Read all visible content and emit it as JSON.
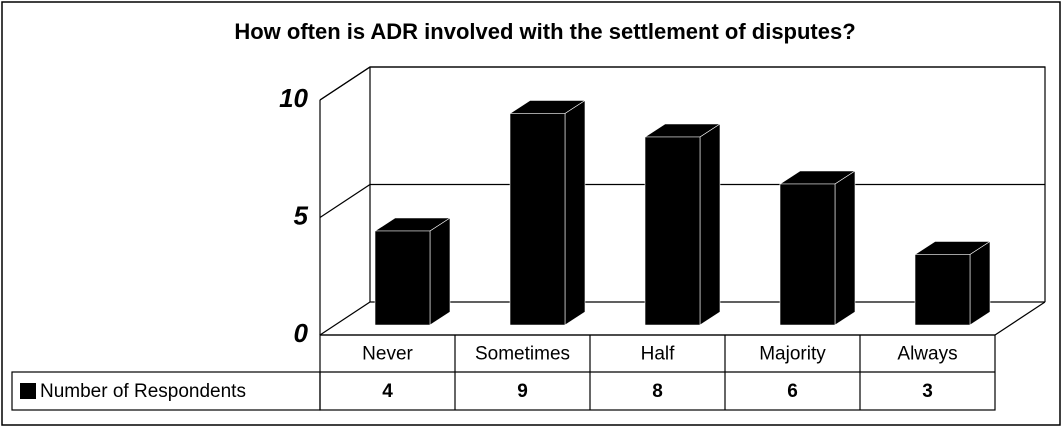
{
  "chart_data": {
    "type": "bar3d",
    "title": "How often is ADR involved with the settlement of disputes?",
    "categories": [
      "Never",
      "Sometimes",
      "Half",
      "Majority",
      "Always"
    ],
    "series": [
      {
        "name": "Number of Respondents",
        "color": "#000000",
        "values": [
          4,
          9,
          8,
          6,
          3
        ]
      }
    ],
    "ylim": [
      0,
      10
    ],
    "yticks": [
      0,
      5,
      10
    ],
    "grid": true
  }
}
